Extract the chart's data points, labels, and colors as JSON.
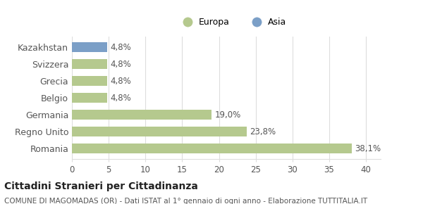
{
  "categories": [
    "Romania",
    "Regno Unito",
    "Germania",
    "Belgio",
    "Grecia",
    "Svizzera",
    "Kazakhstan"
  ],
  "values": [
    38.1,
    23.8,
    19.0,
    4.8,
    4.8,
    4.8,
    4.8
  ],
  "labels": [
    "38,1%",
    "23,8%",
    "19,0%",
    "4,8%",
    "4,8%",
    "4,8%",
    "4,8%"
  ],
  "colors": [
    "#b5c98e",
    "#b5c98e",
    "#b5c98e",
    "#b5c98e",
    "#b5c98e",
    "#b5c98e",
    "#7b9fc7"
  ],
  "europa_color": "#b5c98e",
  "asia_color": "#7b9fc7",
  "xlim": [
    0,
    42
  ],
  "xticks": [
    0,
    5,
    10,
    15,
    20,
    25,
    30,
    35,
    40
  ],
  "title": "Cittadini Stranieri per Cittadinanza",
  "subtitle": "COMUNE DI MAGOMADAS (OR) - Dati ISTAT al 1° gennaio di ogni anno - Elaborazione TUTTITALIA.IT",
  "legend_labels": [
    "Europa",
    "Asia"
  ],
  "background_color": "#ffffff",
  "grid_color": "#dddddd"
}
